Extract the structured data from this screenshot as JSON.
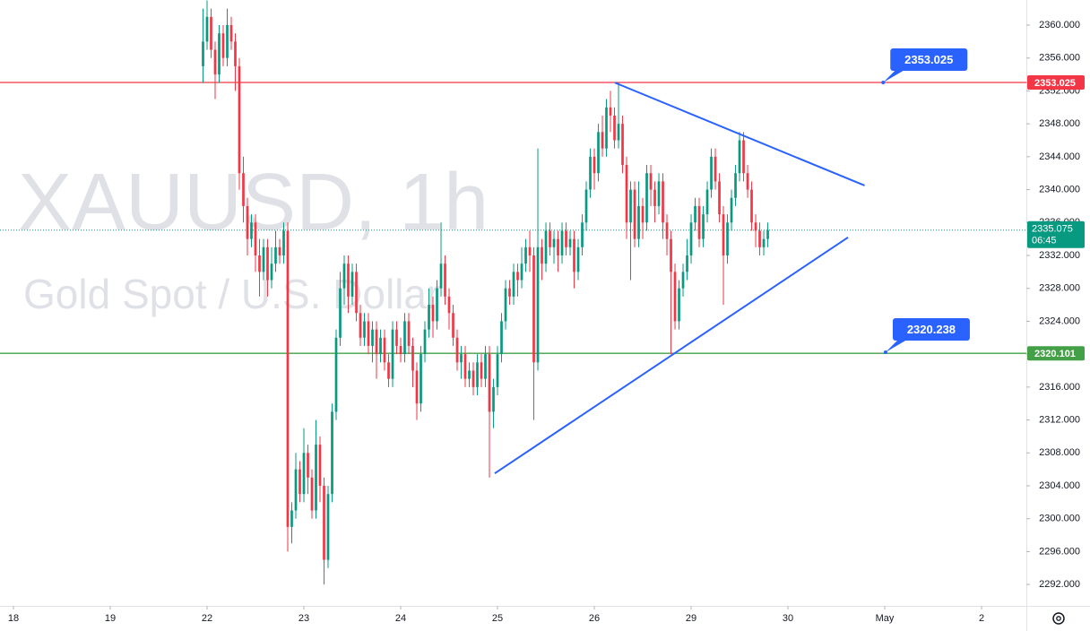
{
  "chart_data": {
    "type": "candlestick",
    "watermark": {
      "symbol": "XAUUSD, 1h",
      "description": "Gold Spot / U.S. Dollar"
    },
    "up_color": "#089981",
    "down_color": "#f23645",
    "xlim": [
      -3.33,
      251.1
    ],
    "ylim": [
      2289.4,
      2363.05
    ],
    "xticks": [
      {
        "value": 0,
        "label": "18"
      },
      {
        "value": 24,
        "label": "19"
      },
      {
        "value": 48,
        "label": "22"
      },
      {
        "value": 72,
        "label": "23"
      },
      {
        "value": 96,
        "label": "24"
      },
      {
        "value": 120,
        "label": "25"
      },
      {
        "value": 144,
        "label": "26"
      },
      {
        "value": 168,
        "label": "29"
      },
      {
        "value": 192,
        "label": "30"
      },
      {
        "value": 216,
        "label": "May"
      },
      {
        "value": 240,
        "label": "2"
      }
    ],
    "yticks": [
      {
        "value": 2292,
        "label": "2292.000"
      },
      {
        "value": 2296,
        "label": "2296.000"
      },
      {
        "value": 2300,
        "label": "2300.000"
      },
      {
        "value": 2304,
        "label": "2304.000"
      },
      {
        "value": 2308,
        "label": "2308.000"
      },
      {
        "value": 2312,
        "label": "2312.000"
      },
      {
        "value": 2316,
        "label": "2316.000"
      },
      {
        "value": 2320,
        "label": "2320.000"
      },
      {
        "value": 2324,
        "label": "2324.000"
      },
      {
        "value": 2328,
        "label": "2328.000"
      },
      {
        "value": 2332,
        "label": "2332.000"
      },
      {
        "value": 2336,
        "label": "2336.000"
      },
      {
        "value": 2340,
        "label": "2340.000"
      },
      {
        "value": 2344,
        "label": "2344.000"
      },
      {
        "value": 2348,
        "label": "2348.000"
      },
      {
        "value": 2352,
        "label": "2352.000"
      },
      {
        "value": 2356,
        "label": "2356.000"
      },
      {
        "value": 2360,
        "label": "2360.000"
      }
    ],
    "x": [
      47,
      48,
      49,
      50,
      51,
      52,
      53,
      54,
      55,
      56,
      57,
      58,
      59,
      60,
      61,
      62,
      63,
      64,
      65,
      66,
      67,
      68,
      69,
      70,
      71,
      72,
      73,
      74,
      75,
      76,
      77,
      78,
      79,
      80,
      81,
      82,
      83,
      84,
      85,
      86,
      87,
      88,
      89,
      90,
      91,
      92,
      93,
      94,
      95,
      96,
      97,
      98,
      99,
      100,
      101,
      102,
      103,
      104,
      105,
      106,
      107,
      108,
      109,
      110,
      111,
      112,
      113,
      114,
      115,
      116,
      117,
      118,
      119,
      120,
      121,
      122,
      123,
      124,
      125,
      126,
      127,
      128,
      129,
      130,
      131,
      132,
      133,
      134,
      135,
      136,
      137,
      138,
      139,
      140,
      141,
      142,
      143,
      144,
      145,
      146,
      147,
      148,
      149,
      150,
      151,
      152,
      153,
      154,
      155,
      156,
      157,
      158,
      159,
      160,
      161,
      162,
      163,
      164,
      165,
      166,
      167,
      168,
      169,
      170,
      171,
      172,
      173,
      174,
      175,
      176,
      177,
      178,
      179,
      180,
      181,
      182,
      183,
      184,
      185,
      186,
      187
    ],
    "open": [
      2355,
      2358,
      2361,
      2357,
      2354,
      2359,
      2356,
      2360,
      2358,
      2355,
      2342,
      2338,
      2334,
      2336,
      2332,
      2330,
      2333,
      2329,
      2331,
      2333,
      2332,
      2335,
      2299,
      2301,
      2306,
      2303,
      2308,
      2305,
      2301,
      2309,
      2304,
      2295,
      2303,
      2313,
      2322,
      2328,
      2331,
      2327,
      2330,
      2325,
      2322,
      2324,
      2321,
      2323,
      2320,
      2322,
      2319,
      2317,
      2323,
      2321,
      2320,
      2324,
      2321,
      2318,
      2314,
      2320,
      2323,
      2326,
      2324,
      2328,
      2331,
      2327,
      2325,
      2322,
      2319,
      2320,
      2317,
      2318,
      2316,
      2319,
      2317,
      2320,
      2313,
      2316,
      2320,
      2324,
      2328,
      2327,
      2330,
      2329,
      2331,
      2333,
      2332,
      2319,
      2333,
      2331,
      2335,
      2333,
      2334,
      2332,
      2335,
      2333,
      2334,
      2330,
      2333,
      2336,
      2340,
      2344,
      2342,
      2347,
      2345,
      2350,
      2349,
      2346,
      2348,
      2343,
      2336,
      2340,
      2334,
      2338,
      2336,
      2342,
      2340,
      2338,
      2341,
      2336,
      2334,
      2330,
      2324,
      2328,
      2330,
      2332,
      2336,
      2338,
      2334,
      2337,
      2340,
      2344,
      2341,
      2337,
      2332,
      2336,
      2339,
      2342,
      2346,
      2342,
      2340,
      2336,
      2335,
      2333,
      2334
    ],
    "high": [
      2362,
      2363,
      2362,
      2358,
      2360,
      2360,
      2362,
      2361,
      2359,
      2356,
      2344,
      2339,
      2337,
      2337,
      2334,
      2334,
      2334,
      2333,
      2335,
      2334,
      2336,
      2336,
      2302,
      2308,
      2307,
      2311,
      2309,
      2306,
      2312,
      2310,
      2305,
      2304,
      2314,
      2323,
      2330,
      2332,
      2332,
      2331,
      2331,
      2326,
      2325,
      2325,
      2324,
      2324,
      2323,
      2323,
      2320,
      2324,
      2324,
      2322,
      2325,
      2325,
      2322,
      2319,
      2321,
      2324,
      2328,
      2327,
      2329,
      2336,
      2332,
      2328,
      2326,
      2323,
      2321,
      2321,
      2319,
      2319,
      2320,
      2320,
      2321,
      2321,
      2317,
      2321,
      2325,
      2329,
      2329,
      2331,
      2331,
      2333,
      2334,
      2335,
      2333,
      2345,
      2334,
      2336,
      2336,
      2335,
      2335,
      2336,
      2336,
      2335,
      2335,
      2334,
      2337,
      2341,
      2345,
      2345,
      2348,
      2349,
      2351,
      2352,
      2350,
      2353,
      2349,
      2344,
      2341,
      2341,
      2341,
      2339,
      2343,
      2343,
      2341,
      2342,
      2342,
      2337,
      2335,
      2331,
      2329,
      2331,
      2334,
      2337,
      2339,
      2339,
      2338,
      2341,
      2345,
      2345,
      2342,
      2338,
      2337,
      2340,
      2343,
      2347,
      2347,
      2343,
      2341,
      2337,
      2336,
      2335,
      2336
    ],
    "low": [
      2353,
      2357,
      2356,
      2351,
      2353,
      2355,
      2355,
      2357,
      2352,
      2340,
      2336,
      2332,
      2333,
      2330,
      2327,
      2329,
      2327,
      2328,
      2330,
      2331,
      2331,
      2296,
      2297,
      2300,
      2302,
      2302,
      2303,
      2300,
      2300,
      2302,
      2292,
      2294,
      2302,
      2312,
      2321,
      2326,
      2325,
      2326,
      2324,
      2321,
      2321,
      2320,
      2319,
      2317,
      2319,
      2318,
      2316,
      2316,
      2320,
      2319,
      2319,
      2320,
      2316,
      2312,
      2313,
      2319,
      2322,
      2322,
      2323,
      2327,
      2326,
      2323,
      2321,
      2318,
      2317,
      2316,
      2316,
      2315,
      2315,
      2316,
      2316,
      2305,
      2311,
      2315,
      2319,
      2323,
      2326,
      2326,
      2327,
      2328,
      2330,
      2330,
      2312,
      2318,
      2329,
      2330,
      2332,
      2331,
      2330,
      2331,
      2332,
      2332,
      2328,
      2329,
      2332,
      2335,
      2339,
      2340,
      2341,
      2344,
      2344,
      2347,
      2345,
      2345,
      2342,
      2334,
      2329,
      2333,
      2333,
      2334,
      2335,
      2338,
      2336,
      2337,
      2334,
      2332,
      2320,
      2323,
      2323,
      2327,
      2329,
      2331,
      2335,
      2333,
      2333,
      2336,
      2339,
      2340,
      2336,
      2326,
      2331,
      2335,
      2338,
      2341,
      2341,
      2339,
      2335,
      2333,
      2332,
      2332,
      2333
    ],
    "close": [
      2358,
      2361,
      2357,
      2354,
      2359,
      2356,
      2360,
      2358,
      2355,
      2342,
      2338,
      2334,
      2336,
      2332,
      2330,
      2333,
      2329,
      2331,
      2333,
      2332,
      2335,
      2299,
      2301,
      2306,
      2303,
      2308,
      2305,
      2301,
      2309,
      2304,
      2295,
      2303,
      2313,
      2322,
      2328,
      2331,
      2327,
      2330,
      2325,
      2322,
      2324,
      2321,
      2323,
      2320,
      2322,
      2319,
      2317,
      2323,
      2321,
      2320,
      2324,
      2321,
      2318,
      2314,
      2320,
      2323,
      2326,
      2324,
      2328,
      2331,
      2327,
      2325,
      2322,
      2319,
      2320,
      2317,
      2318,
      2316,
      2319,
      2317,
      2320,
      2313,
      2316,
      2320,
      2324,
      2328,
      2327,
      2330,
      2329,
      2331,
      2333,
      2332,
      2319,
      2333,
      2331,
      2335,
      2333,
      2334,
      2332,
      2335,
      2333,
      2334,
      2330,
      2333,
      2336,
      2340,
      2344,
      2342,
      2347,
      2345,
      2350,
      2349,
      2346,
      2348,
      2343,
      2336,
      2340,
      2334,
      2338,
      2336,
      2342,
      2340,
      2338,
      2341,
      2336,
      2334,
      2330,
      2324,
      2328,
      2330,
      2332,
      2336,
      2338,
      2334,
      2337,
      2340,
      2344,
      2341,
      2337,
      2332,
      2336,
      2339,
      2342,
      2346,
      2342,
      2340,
      2336,
      2335,
      2333,
      2334,
      2335.075
    ],
    "countdown": "06:45",
    "hlines": [
      {
        "value": 2353.025,
        "color": "#f23645"
      },
      {
        "value": 2320.101,
        "color": "#43a047"
      }
    ],
    "trendlines": [
      {
        "color": "#2962ff",
        "x": [
          149.1,
          211
        ],
        "y": [
          2353,
          2340.5
        ]
      },
      {
        "color": "#2962ff",
        "x": [
          119.3,
          206.9
        ],
        "y": [
          2305.5,
          2334.2
        ]
      }
    ],
    "callouts": [
      {
        "x": 215.6,
        "value": 2353.025,
        "color": "#2962ff"
      },
      {
        "x": 216.2,
        "value": 2320.238,
        "color": "#2962ff"
      }
    ]
  }
}
